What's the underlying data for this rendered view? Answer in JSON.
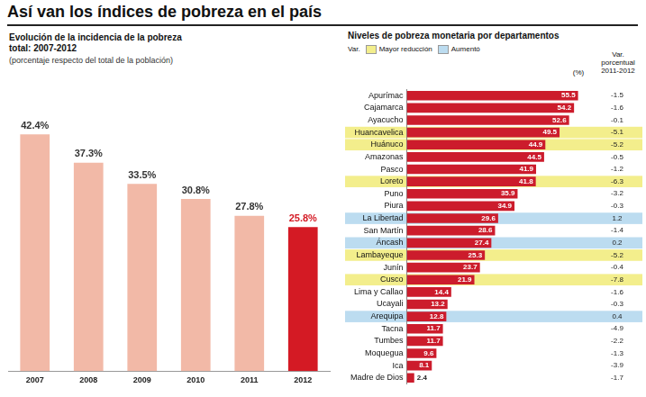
{
  "title": "Así van los índices de pobreza en el país",
  "chart_data": [
    {
      "type": "bar",
      "title": "Evolución de la incidencia de la pobreza total: 2007-2012",
      "subtitle": "(porcentaje respecto del total de la población)",
      "categories": [
        "2007",
        "2008",
        "2009",
        "2010",
        "2011",
        "2012"
      ],
      "values": [
        42.4,
        37.3,
        33.5,
        30.8,
        27.8,
        25.8
      ],
      "value_labels": [
        "42.4%",
        "37.3%",
        "33.5%",
        "30.8%",
        "27.8%",
        "25.8%"
      ],
      "colors": [
        "#f2b9a7",
        "#f2b9a7",
        "#f2b9a7",
        "#f2b9a7",
        "#f2b9a7",
        "#d41a24"
      ],
      "ylim": [
        0,
        50
      ],
      "data_labels": true,
      "tick_labels": "x",
      "grid": false
    },
    {
      "type": "bar",
      "orientation": "horizontal",
      "title": "Niveles de pobreza monetaria por departamentos",
      "categories": [
        "Apurímac",
        "Cajamarca",
        "Ayacucho",
        "Huancavelica",
        "Huánuco",
        "Amazonas",
        "Pasco",
        "Loreto",
        "Puno",
        "Piura",
        "La Libertad",
        "San Martín",
        "Áncash",
        "Lambayeque",
        "Junín",
        "Cusco",
        "Lima y Callao",
        "Ucayali",
        "Arequipa",
        "Tacna",
        "Tumbes",
        "Moquegua",
        "Ica",
        "Madre de Dios"
      ],
      "values": [
        55.5,
        54.2,
        52.6,
        49.5,
        44.9,
        44.5,
        41.9,
        41.8,
        35.9,
        34.9,
        29.6,
        28.6,
        27.4,
        25.3,
        23.7,
        21.9,
        14.4,
        13.2,
        12.8,
        11.7,
        11.7,
        9.6,
        8.1,
        2.4
      ],
      "color": "#cc1c2c",
      "xlim": [
        0,
        60
      ],
      "data_labels": true,
      "tick_labels": "y",
      "grid": false,
      "value_header": "(%)",
      "variation_header": "Var. porcentual 2011-2012",
      "variation": [
        -1.5,
        -1.6,
        -0.1,
        -5.1,
        -5.2,
        -0.5,
        -1.2,
        -6.3,
        -3.2,
        -0.3,
        1.2,
        -1.4,
        0.2,
        -5.2,
        -0.4,
        -7.8,
        -1.6,
        -0.3,
        0.4,
        -4.9,
        -2.2,
        -1.3,
        -3.9,
        -1.7
      ],
      "legend_title": "Var.",
      "highlight_groups": [
        {
          "name": "Mayor reducción",
          "color": "#f3ee8c"
        },
        {
          "name": "Aumentó",
          "color": "#bcdcf0"
        }
      ],
      "highlight": [
        null,
        null,
        null,
        "Mayor reducción",
        "Mayor reducción",
        null,
        null,
        "Mayor reducción",
        null,
        null,
        "Aumentó",
        null,
        "Aumentó",
        "Mayor reducción",
        null,
        "Mayor reducción",
        null,
        null,
        "Aumentó",
        null,
        null,
        null,
        null,
        null
      ]
    }
  ]
}
